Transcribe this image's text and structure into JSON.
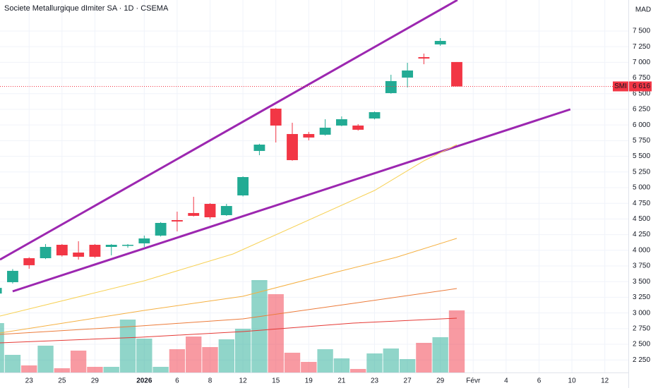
{
  "chart_data": {
    "type": "candlestick",
    "title": "Societe Metallurgique dImiter SA · 1D · CSEMA",
    "currency": "MAD",
    "symbol": "SMI",
    "last_price": {
      "value": 6616,
      "label": "6 616"
    },
    "up_color": "#22ab94",
    "down_color": "#f23645",
    "grid": true,
    "xlim": [
      0.23,
      38.43
    ],
    "ylim": [
      2050,
      7995
    ],
    "vlim": [
      0,
      200
    ],
    "xticks": [
      {
        "value": 2,
        "label": "23"
      },
      {
        "value": 4,
        "label": "25"
      },
      {
        "value": 6,
        "label": "29"
      },
      {
        "value": 9,
        "label": "2026"
      },
      {
        "value": 11,
        "label": "6"
      },
      {
        "value": 13,
        "label": "8"
      },
      {
        "value": 15,
        "label": "12"
      },
      {
        "value": 17,
        "label": "15"
      },
      {
        "value": 19,
        "label": "19"
      },
      {
        "value": 21,
        "label": "21"
      },
      {
        "value": 23,
        "label": "23"
      },
      {
        "value": 25,
        "label": "27"
      },
      {
        "value": 27,
        "label": "29"
      },
      {
        "value": 29,
        "label": "Févr"
      },
      {
        "value": 31,
        "label": "4"
      },
      {
        "value": 33,
        "label": "6"
      },
      {
        "value": 35,
        "label": "10"
      },
      {
        "value": 37,
        "label": "12"
      }
    ],
    "yticks": [
      {
        "value": 2250,
        "label": "2 250"
      },
      {
        "value": 2500,
        "label": "2 500"
      },
      {
        "value": 2750,
        "label": "2 750"
      },
      {
        "value": 3000,
        "label": "3 000"
      },
      {
        "value": 3250,
        "label": "3 250"
      },
      {
        "value": 3500,
        "label": "3 500"
      },
      {
        "value": 3750,
        "label": "3 750"
      },
      {
        "value": 4000,
        "label": "4 000"
      },
      {
        "value": 4250,
        "label": "4 250"
      },
      {
        "value": 4500,
        "label": "4 500"
      },
      {
        "value": 4750,
        "label": "4 750"
      },
      {
        "value": 5000,
        "label": "5 000"
      },
      {
        "value": 5250,
        "label": "5 250"
      },
      {
        "value": 5500,
        "label": "5 500"
      },
      {
        "value": 5750,
        "label": "5 750"
      },
      {
        "value": 6000,
        "label": "6 000"
      },
      {
        "value": 6250,
        "label": "6 250"
      },
      {
        "value": 6500,
        "label": "6 500"
      },
      {
        "value": 6750,
        "label": "6 750"
      },
      {
        "value": 7000,
        "label": "7 000"
      },
      {
        "value": 7250,
        "label": "7 250"
      },
      {
        "value": 7500,
        "label": "7 500"
      }
    ],
    "candles": [
      {
        "x": 0,
        "open": 3310,
        "high": 3420,
        "low": 3290,
        "close": 3400,
        "volume": 70
      },
      {
        "x": 1,
        "open": 3491,
        "high": 3700,
        "low": 3470,
        "close": 3672,
        "volume": 25
      },
      {
        "x": 2,
        "open": 3874,
        "high": 3890,
        "low": 3706,
        "close": 3762,
        "volume": 10
      },
      {
        "x": 3,
        "open": 3874,
        "high": 4100,
        "low": 3860,
        "close": 4054,
        "volume": 38
      },
      {
        "x": 4,
        "open": 4088,
        "high": 4100,
        "low": 3900,
        "close": 3919,
        "volume": 6
      },
      {
        "x": 5,
        "open": 3964,
        "high": 4145,
        "low": 3852,
        "close": 3897,
        "volume": 31
      },
      {
        "x": 6,
        "open": 4088,
        "high": 4100,
        "low": 3880,
        "close": 3897,
        "volume": 8
      },
      {
        "x": 7,
        "open": 4054,
        "high": 4100,
        "low": 3919,
        "close": 4088,
        "volume": 8
      },
      {
        "x": 8,
        "open": 4077,
        "high": 4100,
        "low": 4040,
        "close": 4088,
        "volume": 75
      },
      {
        "x": 9,
        "open": 4111,
        "high": 4235,
        "low": 4054,
        "close": 4189,
        "volume": 48
      },
      {
        "x": 10,
        "open": 4235,
        "high": 4450,
        "low": 4220,
        "close": 4437,
        "volume": 8
      },
      {
        "x": 11,
        "open": 4482,
        "high": 4617,
        "low": 4302,
        "close": 4460,
        "volume": 33
      },
      {
        "x": 12,
        "open": 4595,
        "high": 4854,
        "low": 4540,
        "close": 4550,
        "volume": 51
      },
      {
        "x": 13,
        "open": 4741,
        "high": 4752,
        "low": 4500,
        "close": 4527,
        "volume": 36
      },
      {
        "x": 14,
        "open": 4561,
        "high": 4741,
        "low": 4550,
        "close": 4707,
        "volume": 47
      },
      {
        "x": 15,
        "open": 4876,
        "high": 5180,
        "low": 4860,
        "close": 5169,
        "volume": 62
      },
      {
        "x": 16,
        "open": 5586,
        "high": 5700,
        "low": 5518,
        "close": 5687,
        "volume": 131
      },
      {
        "x": 17,
        "open": 6261,
        "high": 6270,
        "low": 5721,
        "close": 5991,
        "volume": 111
      },
      {
        "x": 18,
        "open": 5856,
        "high": 6036,
        "low": 5430,
        "close": 5439,
        "volume": 28
      },
      {
        "x": 19,
        "open": 5856,
        "high": 5890,
        "low": 5755,
        "close": 5800,
        "volume": 15
      },
      {
        "x": 20,
        "open": 5845,
        "high": 6092,
        "low": 5830,
        "close": 5957,
        "volume": 33
      },
      {
        "x": 21,
        "open": 5991,
        "high": 6137,
        "low": 5980,
        "close": 6092,
        "volume": 20
      },
      {
        "x": 22,
        "open": 5991,
        "high": 6014,
        "low": 5910,
        "close": 5924,
        "volume": 5
      },
      {
        "x": 23,
        "open": 6104,
        "high": 6215,
        "low": 6090,
        "close": 6205,
        "volume": 27
      },
      {
        "x": 24,
        "open": 6509,
        "high": 6802,
        "low": 6500,
        "close": 6701,
        "volume": 34
      },
      {
        "x": 25,
        "open": 6757,
        "high": 6993,
        "low": 6599,
        "close": 6870,
        "volume": 19
      },
      {
        "x": 26,
        "open": 7083,
        "high": 7140,
        "low": 6970,
        "close": 7061,
        "volume": 42
      },
      {
        "x": 27,
        "open": 7286,
        "high": 7387,
        "low": 7263,
        "close": 7342,
        "volume": 50
      },
      {
        "x": 28,
        "open": 7005,
        "high": 7005,
        "low": 6616,
        "close": 6616,
        "volume": 88
      }
    ],
    "lines": [
      {
        "color": "#9c27b0",
        "width": 3,
        "x": [
          0.23,
          28.04
        ],
        "y": [
          3852,
          7995
        ]
      },
      {
        "color": "#9c27b0",
        "width": 3,
        "x": [
          1,
          34.9
        ],
        "y": [
          3345,
          6250
        ]
      },
      {
        "color": "#f7d154",
        "width": 1,
        "x": [
          0.23,
          9,
          14.4,
          23,
          26,
          28
        ],
        "y": [
          2951,
          3514,
          3942,
          4955,
          5428,
          5687
        ]
      },
      {
        "color": "#f5b041",
        "width": 1,
        "x": [
          0.23,
          9,
          15,
          20.8,
          24.3,
          28
        ],
        "y": [
          2681,
          3041,
          3266,
          3660,
          3886,
          4190
        ]
      },
      {
        "color": "#ec7b3a",
        "width": 1,
        "x": [
          0.23,
          8.8,
          15,
          21.7,
          28
        ],
        "y": [
          2658,
          2793,
          2906,
          3153,
          3390
        ]
      },
      {
        "color": "#e53935",
        "width": 1,
        "x": [
          0.23,
          8.8,
          15,
          21.7,
          28
        ],
        "y": [
          2523,
          2613,
          2703,
          2838,
          2917
        ]
      }
    ]
  }
}
